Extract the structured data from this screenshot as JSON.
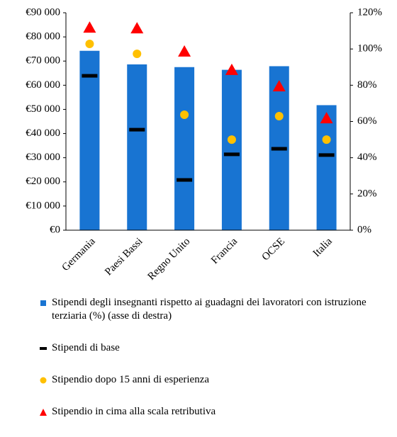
{
  "chart_data": {
    "type": "bar",
    "categories": [
      "Germania",
      "Paesi Bassi",
      "Regno Unito",
      "Francia",
      "OCSE",
      "Italia"
    ],
    "series": [
      {
        "name": "Stipendi degli insegnanti rispetto ai guadagni dei lavoratori con istruzione terziaria (%) (asse di destra)",
        "color": "#1874d2",
        "marker": "bar",
        "axis": "y2",
        "values": [
          99,
          91.5,
          90,
          88.5,
          90.5,
          69
        ]
      },
      {
        "name": "Stipendi di base",
        "color": "#000000",
        "marker": "dash",
        "values": [
          63900,
          41600,
          20800,
          31400,
          33700,
          31100
        ]
      },
      {
        "name": "Stipendio dopo 15 anni di esperienza",
        "color": "#ffc000",
        "marker": "circle",
        "values": [
          77100,
          73000,
          47800,
          37500,
          47200,
          37500
        ]
      },
      {
        "name": "Stipendio in cima alla scala retributiva",
        "color": "#ff0000",
        "marker": "triangle",
        "values": [
          83800,
          83500,
          73900,
          66300,
          59500,
          46300
        ]
      }
    ],
    "ylim": [
      0,
      90000
    ],
    "yticks": [
      {
        "value": 0,
        "label": "€0"
      },
      {
        "value": 10000,
        "label": "€10 000"
      },
      {
        "value": 20000,
        "label": "€20 000"
      },
      {
        "value": 30000,
        "label": "€30 000"
      },
      {
        "value": 40000,
        "label": "€40 000"
      },
      {
        "value": 50000,
        "label": "€50 000"
      },
      {
        "value": 60000,
        "label": "€60 000"
      },
      {
        "value": 70000,
        "label": "€70 000"
      },
      {
        "value": 80000,
        "label": "€80 000"
      },
      {
        "value": 90000,
        "label": "€90 000"
      }
    ],
    "y2lim": [
      0,
      120
    ],
    "y2ticks": [
      {
        "value": 0,
        "label": "0%"
      },
      {
        "value": 20,
        "label": "20%"
      },
      {
        "value": 40,
        "label": "40%"
      },
      {
        "value": 60,
        "label": "60%"
      },
      {
        "value": 80,
        "label": "80%"
      },
      {
        "value": 100,
        "label": "100%"
      },
      {
        "value": 120,
        "label": "120%"
      }
    ]
  }
}
